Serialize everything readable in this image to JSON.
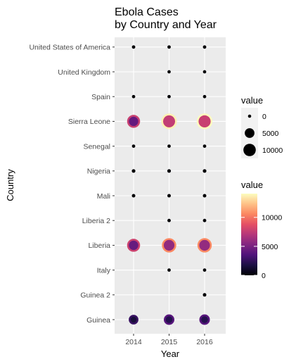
{
  "chart_data": {
    "type": "scatter",
    "title_lines": [
      "Ebola Cases",
      "by Country and Year"
    ],
    "xlabel": "Year",
    "ylabel": "Country",
    "x_categories": [
      "2014",
      "2015",
      "2016"
    ],
    "y_categories": [
      "Guinea",
      "Guinea 2",
      "Italy",
      "Liberia",
      "Liberia 2",
      "Mali",
      "Nigeria",
      "Senegal",
      "Sierra Leone",
      "Spain",
      "United Kingdom",
      "United States of America"
    ],
    "points": [
      {
        "country": "Guinea",
        "year": "2014",
        "value": 2700
      },
      {
        "country": "Guinea",
        "year": "2015",
        "value": 3800
      },
      {
        "country": "Guinea",
        "year": "2016",
        "value": 3800
      },
      {
        "country": "Guinea 2",
        "year": "2016",
        "value": 10
      },
      {
        "country": "Italy",
        "year": "2015",
        "value": 1
      },
      {
        "country": "Italy",
        "year": "2016",
        "value": 1
      },
      {
        "country": "Liberia",
        "year": "2014",
        "value": 7900
      },
      {
        "country": "Liberia",
        "year": "2015",
        "value": 10600
      },
      {
        "country": "Liberia",
        "year": "2016",
        "value": 10700
      },
      {
        "country": "Liberia 2",
        "year": "2015",
        "value": 3
      },
      {
        "country": "Liberia 2",
        "year": "2016",
        "value": 3
      },
      {
        "country": "Mali",
        "year": "2014",
        "value": 8
      },
      {
        "country": "Mali",
        "year": "2015",
        "value": 8
      },
      {
        "country": "Mali",
        "year": "2016",
        "value": 8
      },
      {
        "country": "Nigeria",
        "year": "2014",
        "value": 20
      },
      {
        "country": "Nigeria",
        "year": "2015",
        "value": 20
      },
      {
        "country": "Nigeria",
        "year": "2016",
        "value": 20
      },
      {
        "country": "Senegal",
        "year": "2014",
        "value": 1
      },
      {
        "country": "Senegal",
        "year": "2015",
        "value": 1
      },
      {
        "country": "Senegal",
        "year": "2016",
        "value": 1
      },
      {
        "country": "Sierra Leone",
        "year": "2014",
        "value": 7800
      },
      {
        "country": "Sierra Leone",
        "year": "2015",
        "value": 13700
      },
      {
        "country": "Sierra Leone",
        "year": "2016",
        "value": 14100
      },
      {
        "country": "Spain",
        "year": "2014",
        "value": 1
      },
      {
        "country": "Spain",
        "year": "2015",
        "value": 1
      },
      {
        "country": "Spain",
        "year": "2016",
        "value": 1
      },
      {
        "country": "United Kingdom",
        "year": "2015",
        "value": 1
      },
      {
        "country": "United Kingdom",
        "year": "2016",
        "value": 1
      },
      {
        "country": "United States of America",
        "year": "2014",
        "value": 4
      },
      {
        "country": "United States of America",
        "year": "2015",
        "value": 4
      },
      {
        "country": "United States of America",
        "year": "2016",
        "value": 4
      }
    ],
    "size_legend": {
      "title": "value",
      "breaks": [
        0,
        5000,
        10000
      ],
      "labels": [
        "0",
        "5000",
        "10000"
      ]
    },
    "color_legend": {
      "title": "value",
      "min": 0,
      "max": 14100,
      "breaks": [
        0,
        5000,
        10000
      ],
      "labels": [
        "0",
        "5000",
        "10000"
      ],
      "palette": "magma"
    },
    "grid": true,
    "legend_position": "right",
    "colors": {
      "panel_background": "#ebebeb",
      "grid": "#ffffff",
      "text": "#4d4d4d"
    }
  }
}
